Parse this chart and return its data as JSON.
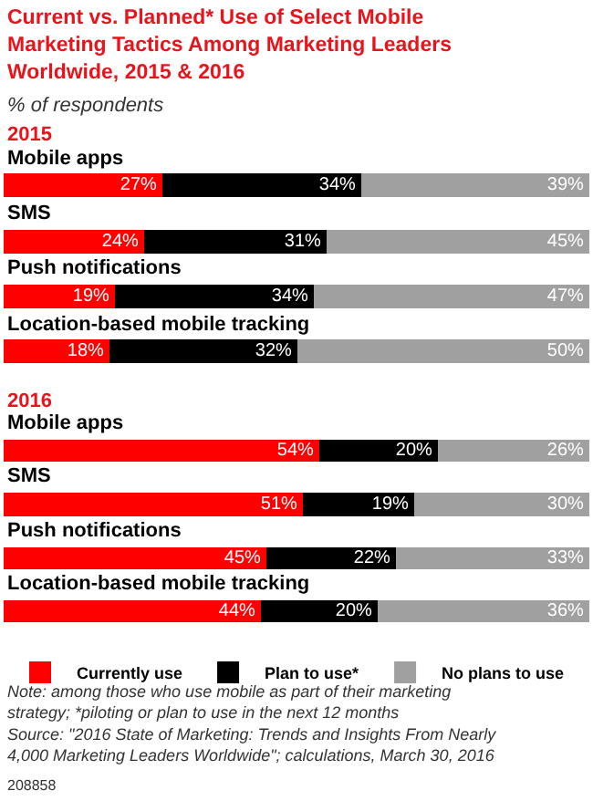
{
  "chart_data": [
    {
      "type": "bar",
      "orientation": "horizontal",
      "stacked": true,
      "legend": false,
      "title": "Current vs. Planned* Use of Select Mobile Marketing Tactics Among Marketing Leaders Worldwide, 2015 & 2016",
      "subtitle": "% of respondents",
      "annotations": [
        "2015"
      ],
      "categories": [
        "Mobile apps",
        "SMS",
        "Push notifications",
        "Location-based mobile tracking"
      ],
      "series": [
        {
          "color": "#ff0000",
          "values": [
            27,
            24,
            19,
            18
          ],
          "value_labels": [
            "27%",
            "24%",
            "19%",
            "18%"
          ]
        },
        {
          "color": "#000000",
          "values": [
            34,
            31,
            34,
            32
          ],
          "value_labels": [
            "34%",
            "31%",
            "34%",
            "32%"
          ]
        },
        {
          "color": "#a0a0a0",
          "values": [
            39,
            45,
            47,
            50
          ],
          "value_labels": [
            "39%",
            "45%",
            "47%",
            "50%"
          ]
        }
      ]
    },
    {
      "type": "bar",
      "orientation": "horizontal",
      "stacked": true,
      "legend": "bottom",
      "annotations": [
        "2016",
        "Note: among those who use mobile as part of their marketing strategy; *piloting or plan to use in the next 12 months",
        "Source: \"2016 State of Marketing: Trends and Insights From Nearly 4,000 Marketing Leaders Worldwide\"; calculations, March 30, 2016",
        "208858"
      ],
      "categories": [
        "Mobile apps",
        "SMS",
        "Push notifications",
        "Location-based mobile tracking"
      ],
      "series": [
        {
          "name": "Currently use",
          "color": "#ff0000",
          "values": [
            54,
            51,
            45,
            44
          ],
          "value_labels": [
            "54%",
            "51%",
            "45%",
            "44%"
          ]
        },
        {
          "name": "Plan to use*",
          "color": "#000000",
          "values": [
            20,
            19,
            22,
            20
          ],
          "value_labels": [
            "20%",
            "19%",
            "22%",
            "20%"
          ]
        },
        {
          "name": "No plans to use",
          "color": "#a0a0a0",
          "values": [
            26,
            30,
            33,
            36
          ],
          "value_labels": [
            "26%",
            "30%",
            "33%",
            "36%"
          ]
        }
      ]
    }
  ]
}
